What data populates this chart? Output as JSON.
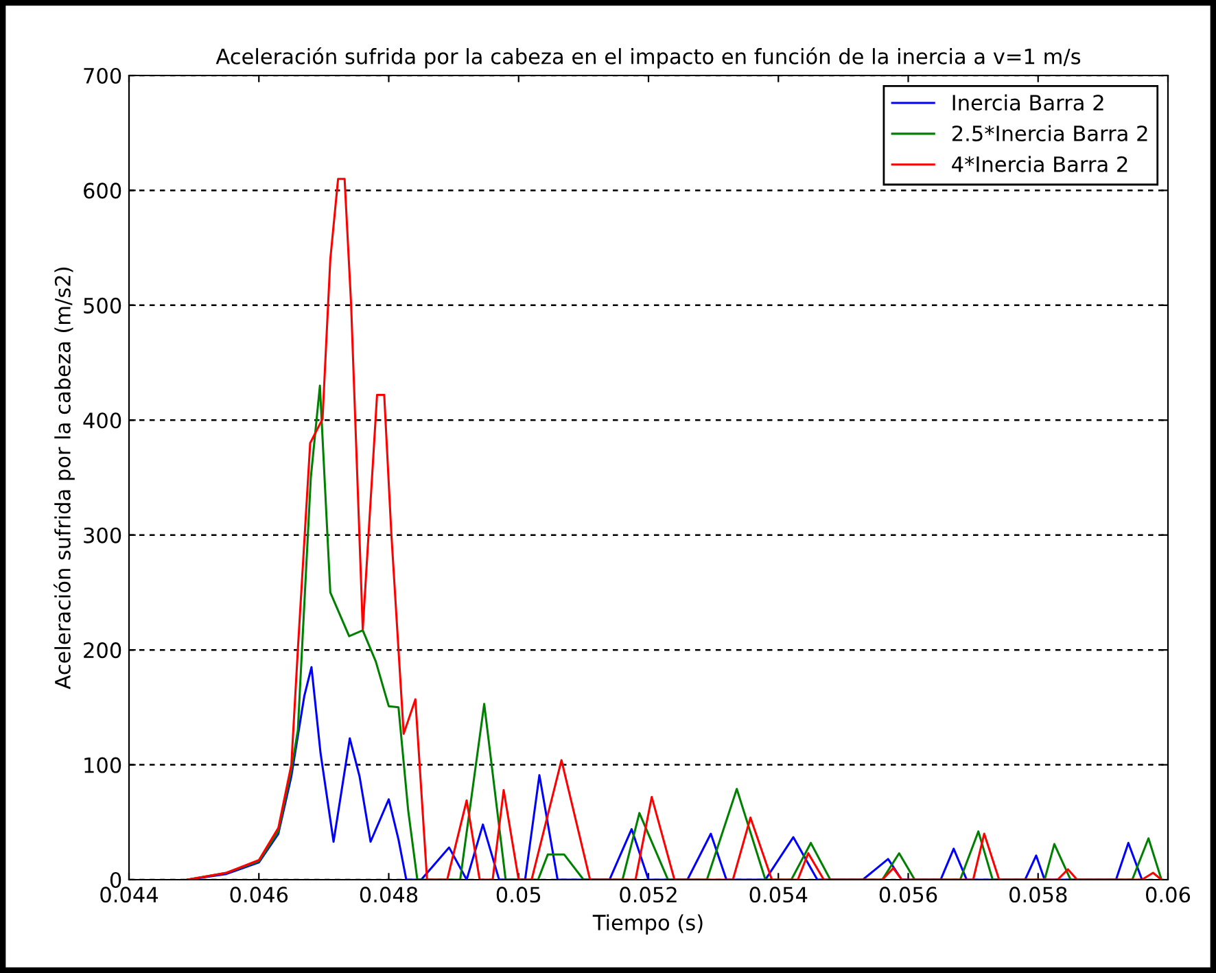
{
  "chart_data": {
    "type": "line",
    "title": "Aceleración sufrida por la cabeza en el impacto en función de la inercia a v=1 m/s",
    "xlabel": "Tiempo (s)",
    "ylabel": "Aceleración sufrida por la cabeza (m/s2)",
    "xlim": [
      0.044,
      0.06
    ],
    "xticks": [
      0.044,
      0.046,
      0.048,
      0.05,
      0.052,
      0.054,
      0.056,
      0.058,
      0.06
    ],
    "ylim": [
      0,
      700
    ],
    "yticks": [
      0,
      100,
      200,
      300,
      400,
      500,
      600,
      700
    ],
    "grid": "y",
    "legend": "top right",
    "line_style": "solid",
    "series": [
      {
        "name": "Inercia Barra 2",
        "color": "#0000ff",
        "x": [
          0.0449,
          0.0455,
          0.046,
          0.0463,
          0.0465,
          0.0467,
          0.04681,
          0.04695,
          0.04715,
          0.0474,
          0.04755,
          0.04772,
          0.048,
          0.04815,
          0.04827,
          0.0485,
          0.04893,
          0.0492,
          0.04945,
          0.0497,
          0.0501,
          0.05032,
          0.0506,
          0.0514,
          0.05174,
          0.052,
          0.0526,
          0.05296,
          0.0532,
          0.0538,
          0.05423,
          0.0546,
          0.0553,
          0.05569,
          0.0559,
          0.0565,
          0.0567,
          0.0569,
          0.0578,
          0.05797,
          0.0581,
          0.0592,
          0.05939,
          0.0596
        ],
        "values": [
          0,
          5,
          15,
          40,
          90,
          160,
          185,
          110,
          33,
          123,
          90,
          33,
          70,
          35,
          0,
          0,
          28,
          0,
          48,
          0,
          0,
          91,
          0,
          0,
          44,
          0,
          0,
          40,
          0,
          0,
          37,
          0,
          0,
          18,
          0,
          0,
          27,
          0,
          0,
          21,
          0,
          0,
          32,
          0
        ]
      },
      {
        "name": "2.5*Inercia Barra 2",
        "color": "#008000",
        "x": [
          0.0449,
          0.0455,
          0.046,
          0.0463,
          0.0465,
          0.0466,
          0.0468,
          0.04694,
          0.0471,
          0.04739,
          0.0476,
          0.0478,
          0.048,
          0.04815,
          0.0483,
          0.04844,
          0.0491,
          0.04947,
          0.0498,
          0.0503,
          0.05045,
          0.0507,
          0.051,
          0.0516,
          0.05186,
          0.0523,
          0.0529,
          0.05336,
          0.0538,
          0.0542,
          0.0545,
          0.0548,
          0.0556,
          0.05586,
          0.0561,
          0.0568,
          0.05708,
          0.0573,
          0.0581,
          0.05825,
          0.0585,
          0.05945,
          0.0597,
          0.0599
        ],
        "values": [
          0,
          6,
          16,
          42,
          95,
          130,
          350,
          430,
          250,
          212,
          217,
          190,
          151,
          150,
          60,
          0,
          0,
          153,
          0,
          0,
          22,
          22,
          0,
          0,
          58,
          0,
          0,
          79,
          0,
          0,
          32,
          0,
          0,
          23,
          0,
          0,
          42,
          0,
          0,
          31,
          0,
          0,
          36,
          0
        ]
      },
      {
        "name": "4*Inercia Barra 2",
        "color": "#ff0000",
        "x": [
          0.0449,
          0.0455,
          0.046,
          0.0463,
          0.0465,
          0.0466,
          0.04679,
          0.04698,
          0.0471,
          0.04722,
          0.04732,
          0.04742,
          0.0476,
          0.04782,
          0.04793,
          0.04804,
          0.04823,
          0.04841,
          0.04859,
          0.0489,
          0.0492,
          0.0494,
          0.0496,
          0.04977,
          0.05,
          0.0502,
          0.05066,
          0.0511,
          0.0518,
          0.05205,
          0.0524,
          0.0533,
          0.05357,
          0.0539,
          0.0543,
          0.05446,
          0.0547,
          0.0556,
          0.05577,
          0.0559,
          0.057,
          0.05717,
          0.0574,
          0.0583,
          0.05846,
          0.0586,
          0.0596,
          0.05977,
          0.0599
        ],
        "values": [
          0,
          6,
          17,
          45,
          100,
          200,
          380,
          401,
          540,
          610,
          610,
          501,
          218,
          422,
          422,
          301,
          127,
          157,
          0,
          0,
          69,
          0,
          0,
          78,
          0,
          0,
          104,
          0,
          0,
          72,
          0,
          0,
          54,
          0,
          0,
          23,
          0,
          0,
          10,
          0,
          0,
          40,
          0,
          0,
          9,
          0,
          0,
          6,
          0
        ]
      }
    ]
  }
}
